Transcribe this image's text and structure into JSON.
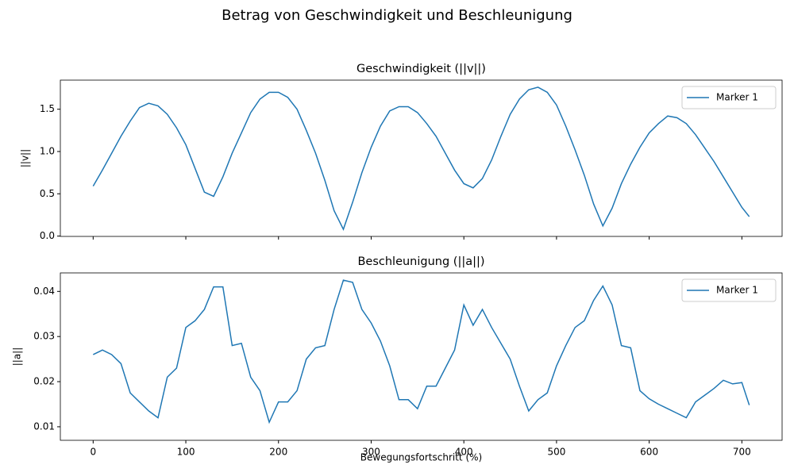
{
  "title": "Betrag von Geschwindigkeit und Beschleunigung",
  "chart_data": [
    {
      "type": "line",
      "title": "Geschwindigkeit (||v||)",
      "y_label": "||v||",
      "x": [
        0,
        10,
        20,
        30,
        40,
        50,
        60,
        70,
        80,
        90,
        100,
        110,
        120,
        130,
        140,
        150,
        160,
        170,
        180,
        190,
        200,
        210,
        220,
        230,
        240,
        250,
        260,
        270,
        280,
        290,
        300,
        310,
        320,
        330,
        340,
        350,
        360,
        370,
        380,
        390,
        400,
        410,
        420,
        430,
        440,
        450,
        460,
        470,
        480,
        490,
        500,
        510,
        520,
        530,
        540,
        550,
        560,
        570,
        580,
        590,
        600,
        610,
        620,
        630,
        640,
        650,
        660,
        670,
        680,
        690,
        700,
        708
      ],
      "series": [
        {
          "name": "Marker 1",
          "color": "#1f77b4",
          "values": [
            0.59,
            0.78,
            0.98,
            1.18,
            1.36,
            1.52,
            1.57,
            1.54,
            1.44,
            1.28,
            1.08,
            0.8,
            0.52,
            0.47,
            0.7,
            0.98,
            1.22,
            1.46,
            1.62,
            1.7,
            1.7,
            1.64,
            1.5,
            1.25,
            0.98,
            0.66,
            0.3,
            0.08,
            0.4,
            0.75,
            1.05,
            1.3,
            1.48,
            1.53,
            1.53,
            1.46,
            1.33,
            1.18,
            0.98,
            0.78,
            0.62,
            0.57,
            0.68,
            0.9,
            1.18,
            1.44,
            1.62,
            1.73,
            1.76,
            1.7,
            1.55,
            1.3,
            1.02,
            0.72,
            0.38,
            0.12,
            0.33,
            0.62,
            0.85,
            1.05,
            1.22,
            1.33,
            1.42,
            1.4,
            1.33,
            1.2,
            1.04,
            0.88,
            0.7,
            0.52,
            0.34,
            0.23
          ]
        }
      ],
      "xlim": [
        -35.4,
        743.4
      ],
      "xticks": [
        0,
        100,
        200,
        300,
        400,
        500,
        600,
        700
      ],
      "ylim": [
        -0.004,
        1.844
      ],
      "yticks": [
        {
          "value": 0,
          "label": "0.0"
        },
        0.5,
        {
          "value": 1,
          "label": "1.0"
        },
        1.5
      ],
      "legend": "upper right",
      "grid": false
    },
    {
      "type": "line",
      "title": "Beschleunigung (||a||)",
      "y_label": "||a||",
      "x_label": "Bewegungsfortschritt (%)",
      "x": [
        0,
        10,
        20,
        30,
        40,
        50,
        60,
        70,
        80,
        90,
        100,
        110,
        120,
        130,
        140,
        150,
        160,
        170,
        180,
        190,
        200,
        210,
        220,
        230,
        240,
        250,
        260,
        270,
        280,
        290,
        300,
        310,
        320,
        330,
        340,
        350,
        360,
        370,
        380,
        390,
        400,
        410,
        420,
        430,
        440,
        450,
        460,
        470,
        480,
        490,
        500,
        510,
        520,
        530,
        540,
        550,
        560,
        570,
        580,
        590,
        600,
        610,
        620,
        630,
        640,
        650,
        660,
        670,
        680,
        690,
        700,
        708
      ],
      "series": [
        {
          "name": "Marker 1",
          "color": "#1f77b4",
          "values": [
            0.026,
            0.027,
            0.026,
            0.024,
            0.0175,
            0.0155,
            0.0135,
            0.012,
            0.021,
            0.023,
            0.032,
            0.0335,
            0.036,
            0.041,
            0.041,
            0.028,
            0.0285,
            0.021,
            0.018,
            0.011,
            0.0155,
            0.0155,
            0.018,
            0.025,
            0.0275,
            0.028,
            0.036,
            0.0425,
            0.042,
            0.036,
            0.033,
            0.029,
            0.0235,
            0.016,
            0.016,
            0.014,
            0.019,
            0.019,
            0.023,
            0.027,
            0.037,
            0.0325,
            0.036,
            0.032,
            0.0285,
            0.025,
            0.019,
            0.0135,
            0.016,
            0.0175,
            0.0235,
            0.028,
            0.032,
            0.0335,
            0.038,
            0.0412,
            0.037,
            0.028,
            0.0275,
            0.018,
            0.0162,
            0.015,
            0.014,
            0.013,
            0.012,
            0.0155,
            0.017,
            0.0185,
            0.0203,
            0.0195,
            0.0198,
            0.0148
          ]
        }
      ],
      "xlim": [
        -35.4,
        743.4
      ],
      "xticks": [
        0,
        100,
        200,
        300,
        400,
        500,
        600,
        700
      ],
      "ylim": [
        0.007,
        0.0441
      ],
      "yticks": [
        0.01,
        0.02,
        0.03,
        0.04
      ],
      "legend": "upper right",
      "grid": false
    }
  ]
}
